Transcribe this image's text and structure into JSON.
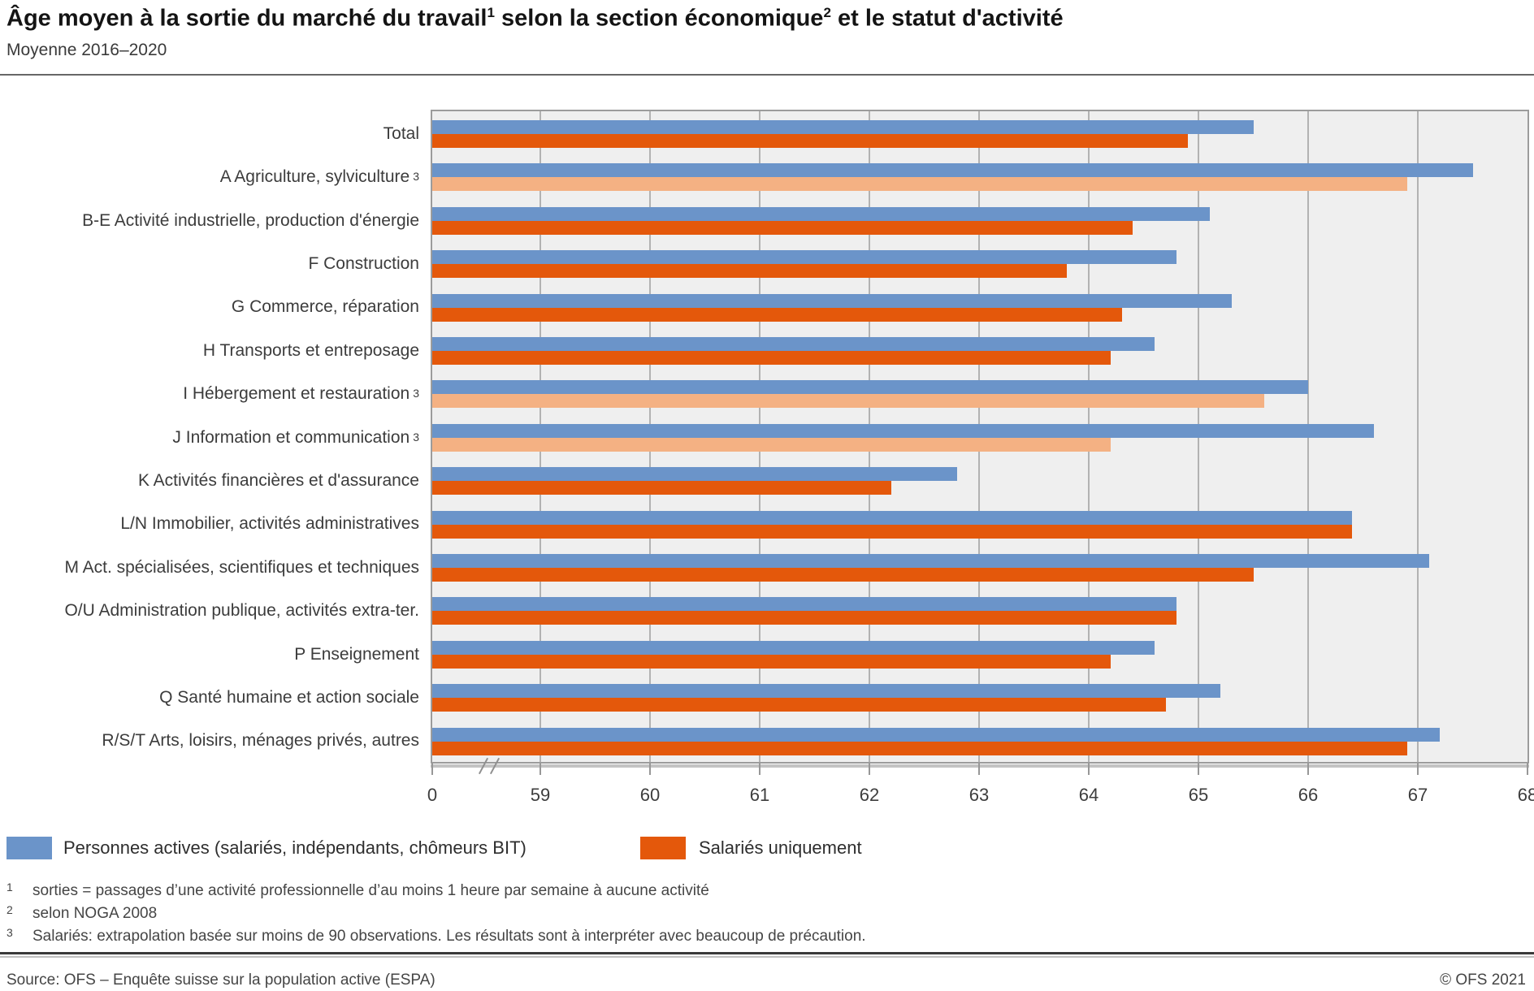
{
  "title": {
    "part1": "Âge moyen à la sortie du marché du travail",
    "sup1": "1",
    "part2": " selon la section économique",
    "sup2": "2",
    "part3": " et le statut d'activité",
    "subtitle": "Moyenne 2016–2020"
  },
  "colors": {
    "active_bar": "#6B94C9",
    "salaried_bar": "#E4580B",
    "salaried_pale_bar": "#F4B183",
    "plot_background": "#EFEFEF",
    "gridline": "#B2B2B2"
  },
  "chart_data": {
    "type": "bar",
    "orientation": "horizontal",
    "title": "Âge moyen à la sortie du marché du travail selon la section économique et le statut d'activité",
    "subtitle": "Moyenne 2016–2020",
    "x_axis": {
      "ticks": [
        0,
        59,
        60,
        61,
        62,
        63,
        64,
        65,
        66,
        67,
        68
      ],
      "range_note": "axis break between 0 and 59",
      "grid": true
    },
    "categories": [
      {
        "label": "Total",
        "footnote": ""
      },
      {
        "label": "A Agriculture, sylviculture",
        "footnote": "3"
      },
      {
        "label": "B-E Activité industrielle, production d'énergie",
        "footnote": ""
      },
      {
        "label": "F Construction",
        "footnote": ""
      },
      {
        "label": "G Commerce, réparation",
        "footnote": ""
      },
      {
        "label": "H Transports et entreposage",
        "footnote": ""
      },
      {
        "label": "I Hébergement et restauration",
        "footnote": "3"
      },
      {
        "label": "J Information et communication",
        "footnote": "3"
      },
      {
        "label": "K Activités financières et d'assurance",
        "footnote": ""
      },
      {
        "label": "L/N Immobilier, activités administratives",
        "footnote": ""
      },
      {
        "label": "M Act. spécialisées, scientifiques et techniques",
        "footnote": ""
      },
      {
        "label": "O/U Administration publique, activités extra-ter.",
        "footnote": ""
      },
      {
        "label": "P Enseignement",
        "footnote": ""
      },
      {
        "label": "Q Santé humaine et action sociale",
        "footnote": ""
      },
      {
        "label": "R/S/T Arts, loisirs, ménages privés, autres",
        "footnote": ""
      }
    ],
    "series": [
      {
        "name": "Personnes actives (salariés, indépendants, chômeurs BIT)",
        "color": "#6B94C9",
        "values": [
          65.5,
          67.5,
          65.1,
          64.8,
          65.3,
          64.6,
          66.0,
          66.6,
          62.8,
          66.4,
          67.1,
          64.8,
          64.6,
          65.2,
          67.2
        ]
      },
      {
        "name": "Salariés uniquement",
        "color": "#E4580B",
        "pale_color": "#F4B183",
        "pale_rows": [
          1,
          6,
          7
        ],
        "values": [
          64.9,
          66.9,
          64.4,
          63.8,
          64.3,
          64.2,
          65.6,
          64.2,
          62.2,
          66.4,
          65.5,
          64.8,
          64.2,
          64.7,
          66.9
        ]
      }
    ],
    "legend_position": "bottom"
  },
  "legend": [
    {
      "label": "Personnes actives (salariés, indépendants, chômeurs BIT)"
    },
    {
      "label": "Salariés uniquement"
    }
  ],
  "footnotes": [
    {
      "num": "1",
      "text": "sorties = passages d’une activité professionnelle d’au moins 1 heure par semaine à aucune activité"
    },
    {
      "num": "2",
      "text": "selon NOGA 2008"
    },
    {
      "num": "3",
      "text": "Salariés: extrapolation basée sur moins de 90 observations. Les résultats sont à interpréter avec beaucoup de précaution."
    }
  ],
  "footer": {
    "source": "Source: OFS – Enquête suisse sur la population active (ESPA)",
    "copyright": "© OFS 2021"
  }
}
